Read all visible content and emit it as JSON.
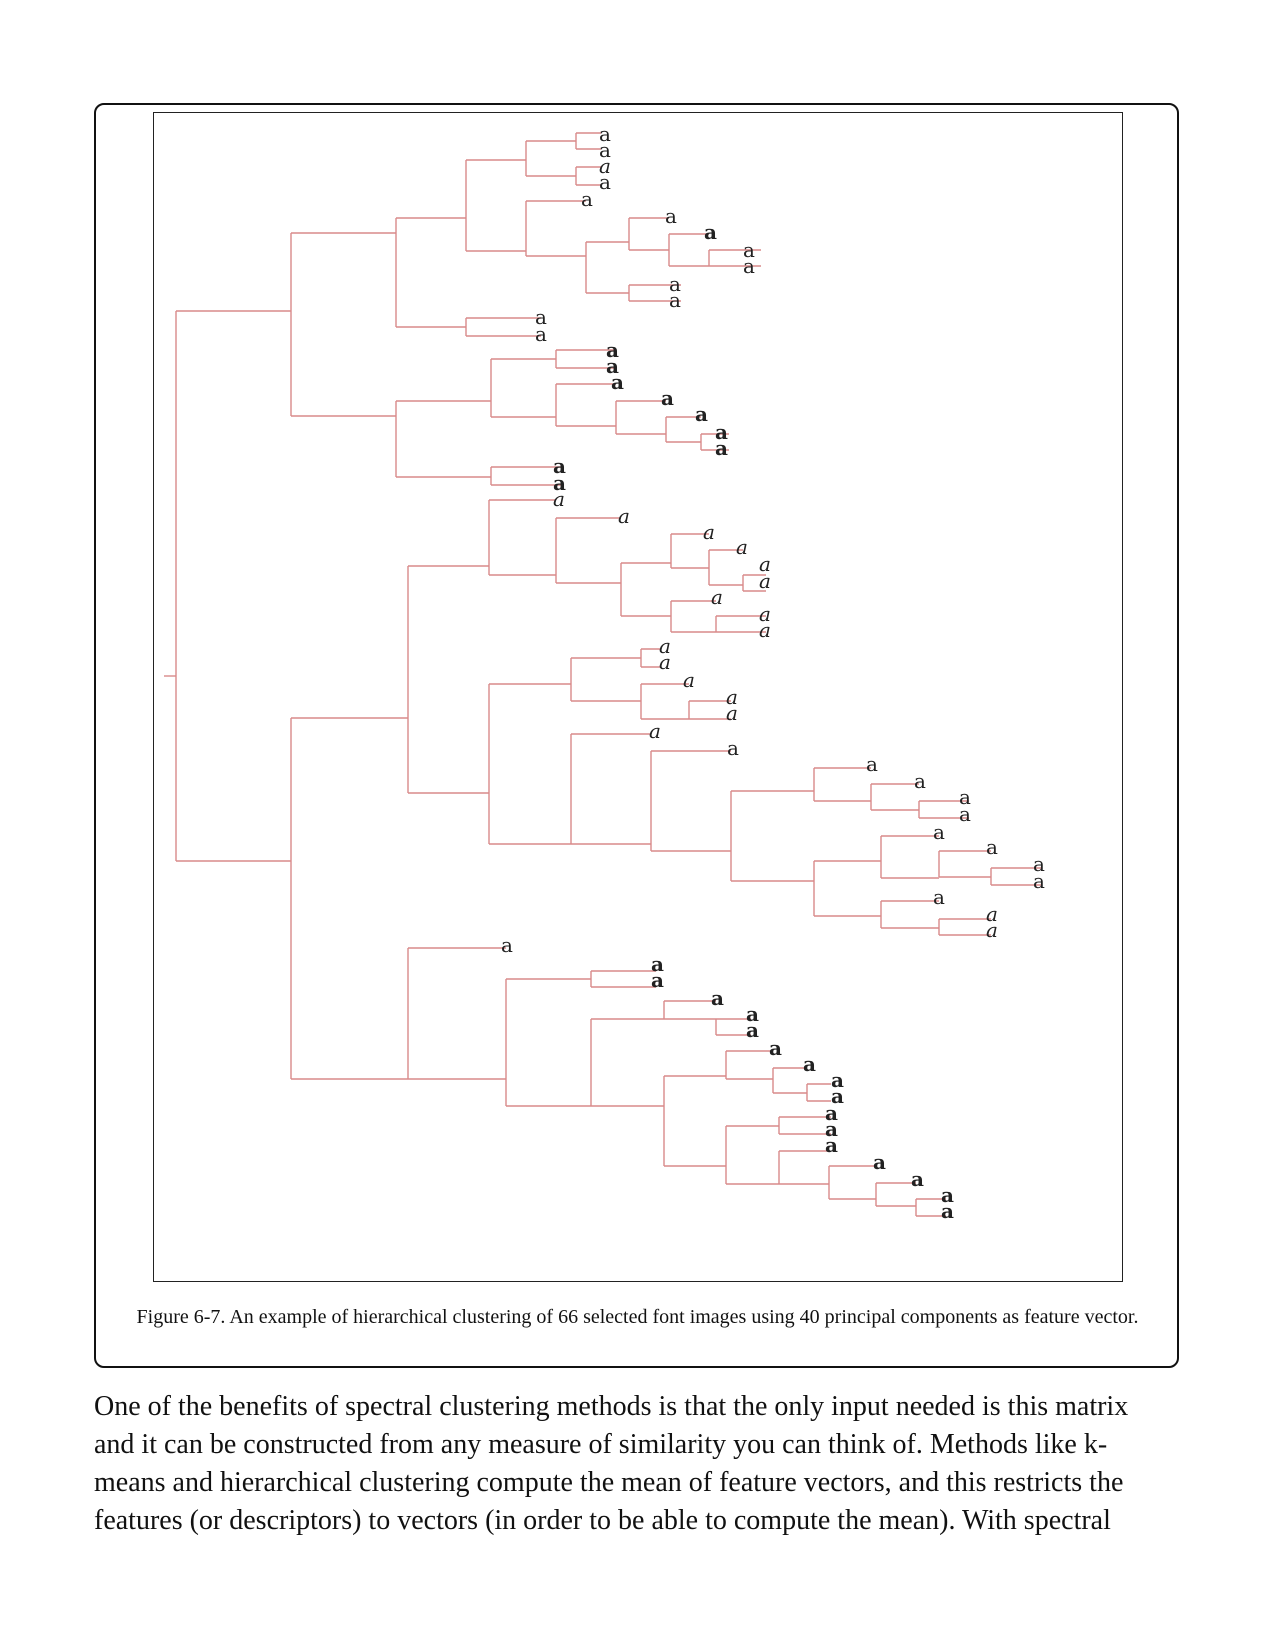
{
  "figure": {
    "caption": "Figure 6-7. An example of hierarchical clustering of 66 selected font images using 40 principal components as feature vector.",
    "leaf_count": 66,
    "leaf_glyph": "a",
    "line_color": "#d98a8a"
  },
  "body": {
    "lines": [
      "One of the benefits of spectral clustering methods is that the only input needed is this matrix",
      "and it can be constructed from any measure of similarity you can think of. Methods like k-",
      "means and hierarchical clustering compute the mean of feature vectors, and this restricts the",
      "features (or descriptors) to vectors (in order to be able to compute the mean). With spectral"
    ]
  }
}
